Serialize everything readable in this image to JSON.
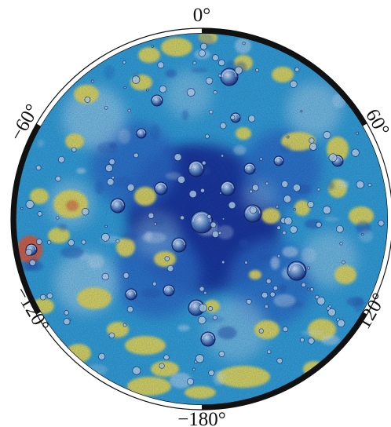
{
  "map": {
    "projection": "polar-stereographic",
    "hemisphere": "south-pole",
    "frame": "alternating black and white longitude ring",
    "longitude_labels": {
      "lon_0": "0°",
      "lon_60": "60°",
      "lon_120": "120°",
      "lon_180": "−180°",
      "lon_neg120": "−120°",
      "lon_neg60": "−60°"
    },
    "colors": {
      "low_elevation": "#1a3a9a",
      "mid_low": "#2f74c8",
      "mid": "#35a8d8",
      "mid_high": "#9fd6ea",
      "high": "#e9e25a",
      "highest": "#e0653a",
      "frame_dark": "#111111",
      "frame_light": "#ffffff"
    }
  }
}
